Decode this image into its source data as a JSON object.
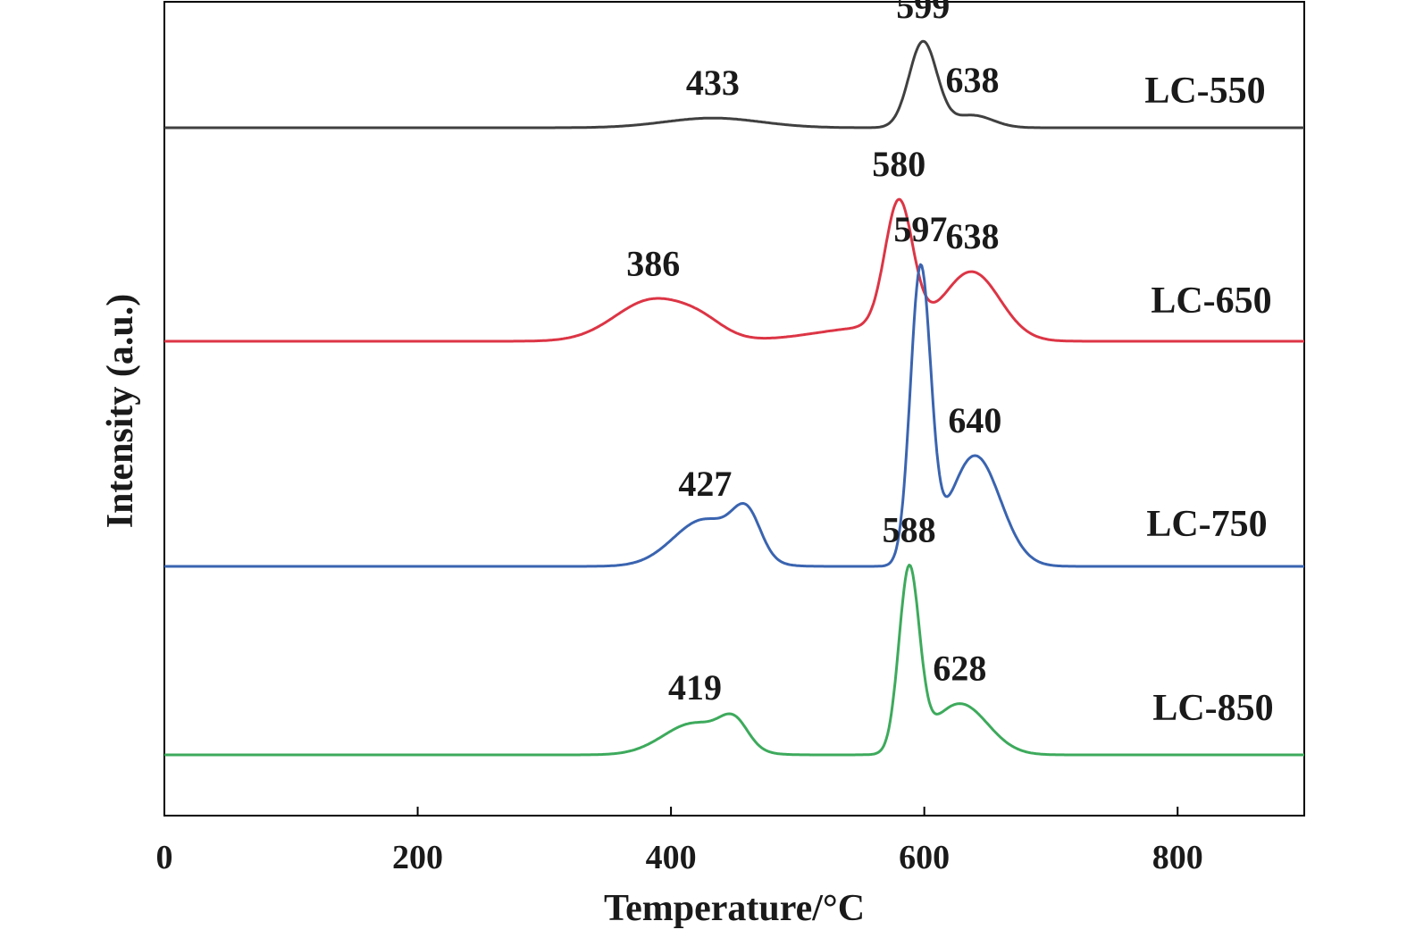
{
  "chart_data": {
    "type": "line",
    "xlabel": "Temperature/°C",
    "ylabel": "Intensity (a.u.)",
    "xlim": [
      0,
      900
    ],
    "xticks": [
      0,
      200,
      400,
      600,
      800
    ],
    "grid": false,
    "legend": "none",
    "series": [
      {
        "name": "LC-550",
        "color": "#404040",
        "baseline": 0,
        "peaks": [
          {
            "center": 433,
            "height": 0.07,
            "width": 38
          },
          {
            "center": 599,
            "height": 0.62,
            "width": 11
          },
          {
            "center": 638,
            "height": 0.09,
            "width": 16
          }
        ],
        "labels": [
          433,
          599,
          638
        ]
      },
      {
        "name": "LC-650",
        "color": "#dc3545",
        "baseline": 0,
        "peaks": [
          {
            "center": 386,
            "height": 0.3,
            "width": 30
          },
          {
            "center": 425,
            "height": 0.08,
            "width": 18
          },
          {
            "center": 560,
            "height": 0.1,
            "width": 45
          },
          {
            "center": 580,
            "height": 0.92,
            "width": 11
          },
          {
            "center": 638,
            "height": 0.48,
            "width": 22
          }
        ],
        "labels": [
          386,
          580,
          638
        ]
      },
      {
        "name": "LC-750",
        "color": "#3a64b0",
        "baseline": 0,
        "peaks": [
          {
            "center": 427,
            "height": 0.34,
            "width": 25
          },
          {
            "center": 460,
            "height": 0.3,
            "width": 11
          },
          {
            "center": 597,
            "height": 2.1,
            "width": 8
          },
          {
            "center": 640,
            "height": 0.8,
            "width": 20
          }
        ],
        "labels": [
          427,
          597,
          640
        ]
      },
      {
        "name": "LC-850",
        "color": "#3daa5c",
        "baseline": 0,
        "peaks": [
          {
            "center": 419,
            "height": 0.23,
            "width": 25
          },
          {
            "center": 450,
            "height": 0.18,
            "width": 11
          },
          {
            "center": 588,
            "height": 1.3,
            "width": 8
          },
          {
            "center": 628,
            "height": 0.37,
            "width": 22
          }
        ],
        "labels": [
          419,
          588,
          628
        ]
      }
    ]
  }
}
